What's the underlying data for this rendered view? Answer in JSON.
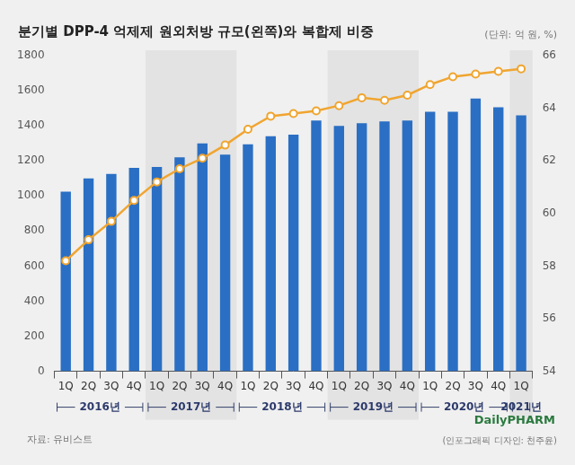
{
  "chart_data": {
    "type": "bar",
    "title": "분기별 DPP-4 억제제 원외처방 규모(왼쪽)와 복합제 비중",
    "unit_note": "(단위: 억 원, %)",
    "source": "자료: 유비스트",
    "logo": "DailyPHARM",
    "credit": "(인포그래픽 디자인: 천주윤)",
    "categories": [
      "1Q",
      "2Q",
      "3Q",
      "4Q",
      "1Q",
      "2Q",
      "3Q",
      "4Q",
      "1Q",
      "2Q",
      "3Q",
      "4Q",
      "1Q",
      "2Q",
      "3Q",
      "4Q",
      "1Q",
      "2Q",
      "3Q",
      "4Q",
      "1Q"
    ],
    "x_groups": [
      {
        "label": "2016년",
        "span": 4
      },
      {
        "label": "2017년",
        "span": 4
      },
      {
        "label": "2018년",
        "span": 4
      },
      {
        "label": "2019년",
        "span": 4
      },
      {
        "label": "2020년",
        "span": 4
      },
      {
        "label": "2021년",
        "span": 1
      }
    ],
    "series": [
      {
        "type": "bar",
        "color": "#2a6fc4",
        "values": [
          1025,
          1100,
          1125,
          1160,
          1165,
          1220,
          1300,
          1235,
          1295,
          1340,
          1350,
          1430,
          1400,
          1415,
          1425,
          1430,
          1480,
          1480,
          1555,
          1505,
          1460
        ]
      },
      {
        "type": "line",
        "color": "#f0a530",
        "axis": "y2",
        "marker": "circle",
        "line_style": "solid",
        "values": [
          58.2,
          59.0,
          59.7,
          60.5,
          61.2,
          61.7,
          62.1,
          62.6,
          63.2,
          63.7,
          63.8,
          63.9,
          64.1,
          64.4,
          64.3,
          64.5,
          64.9,
          65.2,
          65.3,
          65.4,
          65.5
        ]
      }
    ],
    "ylim": [
      0,
      1800
    ],
    "yticks": [
      0,
      200,
      400,
      600,
      800,
      1000,
      1200,
      1400,
      1600,
      1800
    ],
    "y2lim": [
      54,
      66
    ],
    "y2ticks": [
      54,
      56,
      58,
      60,
      62,
      64,
      66
    ],
    "grid": false
  }
}
